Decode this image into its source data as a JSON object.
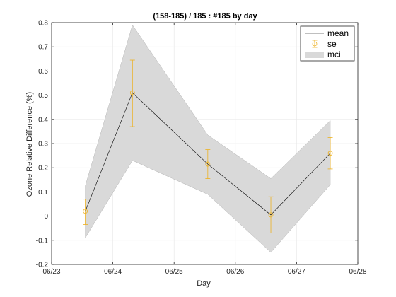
{
  "chart_data": {
    "type": "line",
    "title": "(158-185) / 185 : #185 by day",
    "xlabel": "Day",
    "ylabel": "Ozone Relative Difference (%)",
    "xlim": [
      0,
      5
    ],
    "ylim": [
      -0.2,
      0.8
    ],
    "x_ticks": [
      0,
      1,
      2,
      3,
      4,
      5
    ],
    "x_tick_labels": [
      "06/23",
      "06/24",
      "06/25",
      "06/26",
      "06/27",
      "06/28"
    ],
    "y_ticks": [
      -0.2,
      -0.1,
      0,
      0.1,
      0.2,
      0.3,
      0.4,
      0.5,
      0.6,
      0.7,
      0.8
    ],
    "y_tick_labels": [
      "-0.2",
      "-0.1",
      "0",
      "0.1",
      "0.2",
      "0.3",
      "0.4",
      "0.5",
      "0.6",
      "0.7",
      "0.8"
    ],
    "grid": true,
    "zero_line": true,
    "legend_position": "top-right",
    "x": [
      0.55,
      1.32,
      2.55,
      3.58,
      4.55
    ],
    "series": [
      {
        "name": "mean",
        "color": "#000000",
        "values": [
          0.02,
          0.51,
          0.215,
          0.005,
          0.26
        ]
      },
      {
        "name": "se",
        "color": "#EDB120",
        "values": [
          0.02,
          0.51,
          0.215,
          0.005,
          0.26
        ],
        "lower": [
          -0.035,
          0.37,
          0.155,
          -0.07,
          0.195
        ],
        "upper": [
          0.07,
          0.645,
          0.275,
          0.08,
          0.325
        ]
      },
      {
        "name": "mci",
        "color": "#D9D9D9",
        "lower": [
          -0.09,
          0.23,
          0.09,
          -0.15,
          0.13
        ],
        "upper": [
          0.125,
          0.79,
          0.335,
          0.155,
          0.395
        ]
      }
    ]
  }
}
